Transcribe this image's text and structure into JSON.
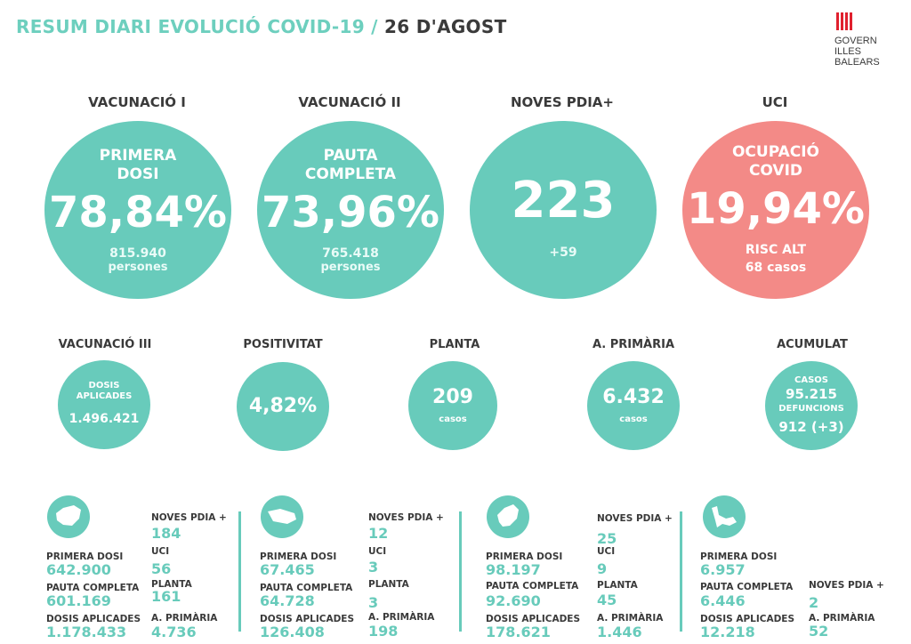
{
  "header": {
    "title_main": "RESUM DIARI EVOLUCIÓ COVID-19 /",
    "title_date": "26 D'AGOST",
    "logo_lines": [
      "GOVERN",
      "ILLES",
      "BALEARS"
    ]
  },
  "top": [
    {
      "header": "VACUNACIÓ I",
      "label_lines": [
        "PRIMERA",
        "DOSI"
      ],
      "value": "78,84%",
      "sub1": "815.940",
      "sub2": "persones",
      "color": "#68cbbb"
    },
    {
      "header": "VACUNACIÓ II",
      "label_lines": [
        "PAUTA",
        "COMPLETA"
      ],
      "value": "73,96%",
      "sub1": "765.418",
      "sub2": "persones",
      "color": "#68cbbb"
    },
    {
      "header": "NOVES PDIA+",
      "value": "223",
      "sub1": "+59",
      "color": "#68cbbb"
    },
    {
      "header": "UCI",
      "label_lines": [
        "OCUPACIÓ",
        "COVID"
      ],
      "value": "19,94%",
      "sub1": "RISC ALT",
      "sub2": "68 casos",
      "color": "#f38a87"
    }
  ],
  "middle": [
    {
      "header": "VACUNACIÓ III",
      "label_lines": [
        "DOSIS",
        "APLICADES"
      ],
      "value": "1.496.421"
    },
    {
      "header": "POSITIVITAT",
      "value": "4,82%"
    },
    {
      "header": "PLANTA",
      "value": "209",
      "unit": "casos"
    },
    {
      "header": "A. PRIMÀRIA",
      "value": "6.432",
      "unit": "casos"
    },
    {
      "header": "ACUMULAT",
      "label1": "CASOS",
      "value1": "95.215",
      "label2": "DEFUNCIONS",
      "value2": "912 (+3)"
    }
  ],
  "labels": {
    "primera_dosi": "PRIMERA DOSI",
    "pauta_completa": "PAUTA COMPLETA",
    "dosis_aplicades": "DOSIS APLICADES",
    "noves_pdia": "NOVES PDIA +",
    "uci": "UCI",
    "planta": "PLANTA",
    "a_primaria": "A. PRIMÀRIA"
  },
  "islands": [
    {
      "icon": "mallorca-island-icon",
      "primera_dosi": "642.900",
      "pauta_completa": "601.169",
      "dosis_aplicades": "1.178.433",
      "noves_pdia": "184",
      "uci": "56",
      "planta": "161",
      "a_primaria": "4.736"
    },
    {
      "icon": "menorca-island-icon",
      "primera_dosi": "67.465",
      "pauta_completa": "64.728",
      "dosis_aplicades": "126.408",
      "noves_pdia": "12",
      "uci": "3",
      "planta": "3",
      "a_primaria": "198"
    },
    {
      "icon": "eivissa-island-icon",
      "primera_dosi": "98.197",
      "pauta_completa": "92.690",
      "dosis_aplicades": "178.621",
      "noves_pdia": "25",
      "uci": "9",
      "planta": "45",
      "a_primaria": "1.446"
    },
    {
      "icon": "formentera-island-icon",
      "primera_dosi": "6.957",
      "pauta_completa": "6.446",
      "dosis_aplicades": "12.218",
      "noves_pdia": "2",
      "a_primaria": "52"
    }
  ]
}
